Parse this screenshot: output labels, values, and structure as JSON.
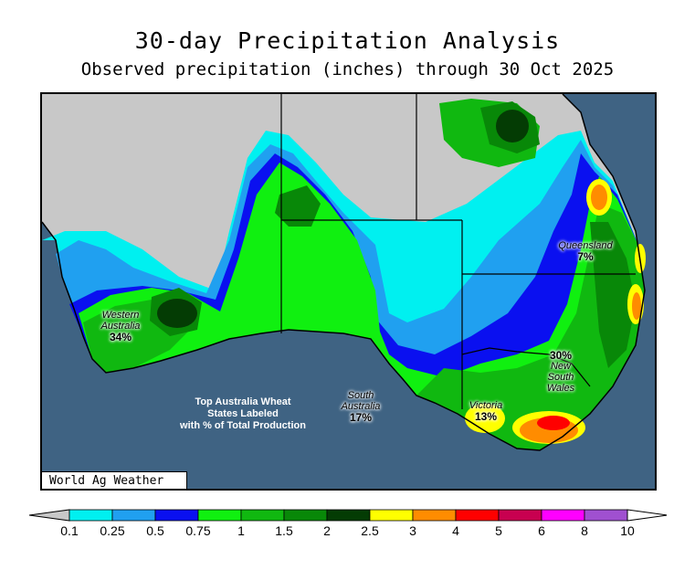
{
  "title": "30-day Precipitation Analysis",
  "subtitle": "Observed precipitation (inches) through 30 Oct 2025",
  "brand": "World Ag Weather",
  "note": [
    "Top Australia Wheat",
    "States Labeled",
    "with % of Total Production"
  ],
  "states": [
    {
      "name": [
        "Western",
        "Australia"
      ],
      "pct": "34%"
    },
    {
      "name": [
        "South",
        "Australia"
      ],
      "pct": "17%"
    },
    {
      "name": [
        "Victoria"
      ],
      "pct": "13%"
    },
    {
      "name": [
        "New",
        "South",
        "Wales"
      ],
      "pct": "30%"
    },
    {
      "name": [
        "Queensland"
      ],
      "pct": "7%"
    }
  ],
  "legend": {
    "ticks": [
      "0.1",
      "0.25",
      "0.5",
      "0.75",
      "1",
      "1.5",
      "2",
      "2.5",
      "3",
      "4",
      "5",
      "6",
      "8",
      "10"
    ],
    "colors": [
      "#00f0f0",
      "#20a0f0",
      "#0a10f0",
      "#10f010",
      "#10b810",
      "#088808",
      "#043c04",
      "#ffff00",
      "#ff8c00",
      "#ff0000",
      "#c80050",
      "#ff00ff",
      "#a050d0"
    ],
    "below_color": "#c8c8c8",
    "above_color": "#ffffff"
  },
  "map_colors": {
    "ocean": "#3f6383",
    "dry": "#c8c8c8"
  }
}
